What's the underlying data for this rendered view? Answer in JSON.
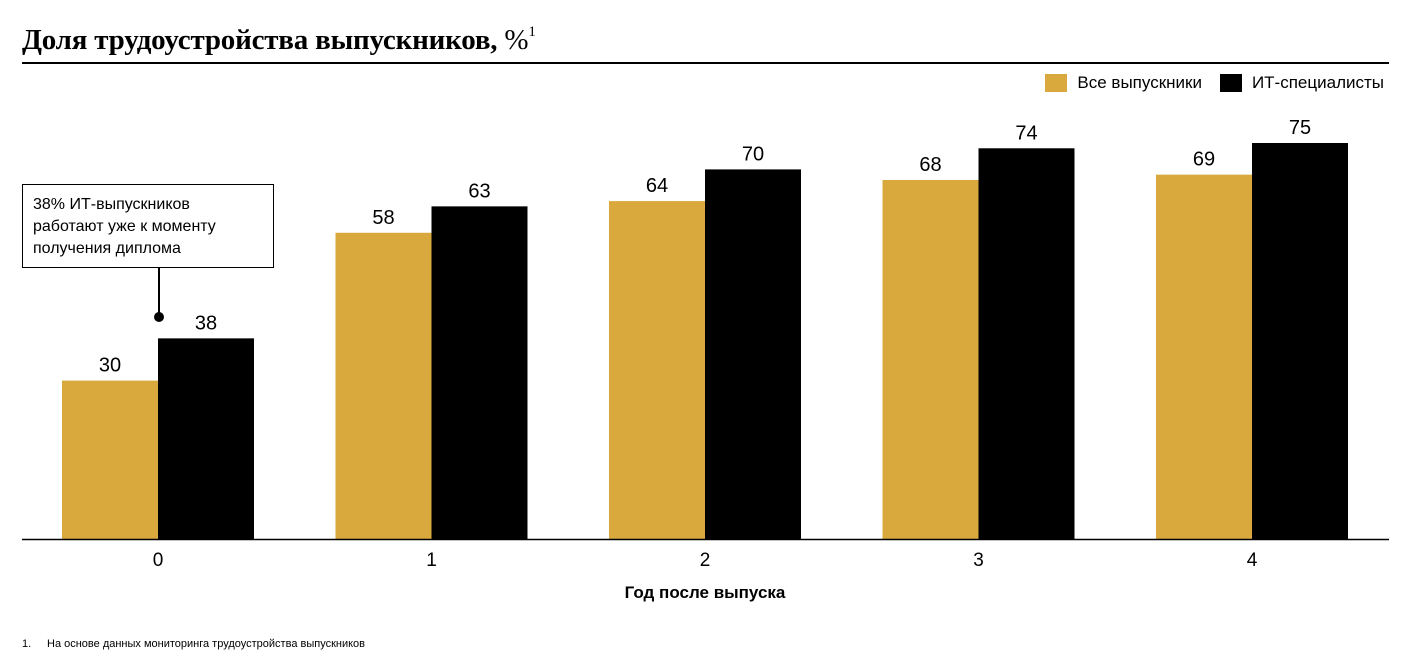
{
  "chart_data": {
    "type": "bar",
    "title": "Доля трудоустройства выпускников,",
    "title_unit": "%",
    "title_footnote_mark": "1",
    "xlabel": "Год после выпуска",
    "ylabel": "",
    "categories": [
      "0",
      "1",
      "2",
      "3",
      "4"
    ],
    "series": [
      {
        "name": "Все выпускники",
        "values": [
          30,
          58,
          64,
          68,
          69
        ],
        "color": "#D9A93E"
      },
      {
        "name": "ИТ-специалисты",
        "values": [
          38,
          63,
          70,
          74,
          75
        ],
        "color": "#000000"
      }
    ],
    "ylim": [
      0,
      75
    ],
    "grid": false,
    "legend_position": "top-right",
    "annotation": "38% ИТ-выпускников работают уже к моменту получения диплома",
    "footnote_number": "1.",
    "footnote": "На основе данных мониторинга трудоустройства выпускников"
  }
}
